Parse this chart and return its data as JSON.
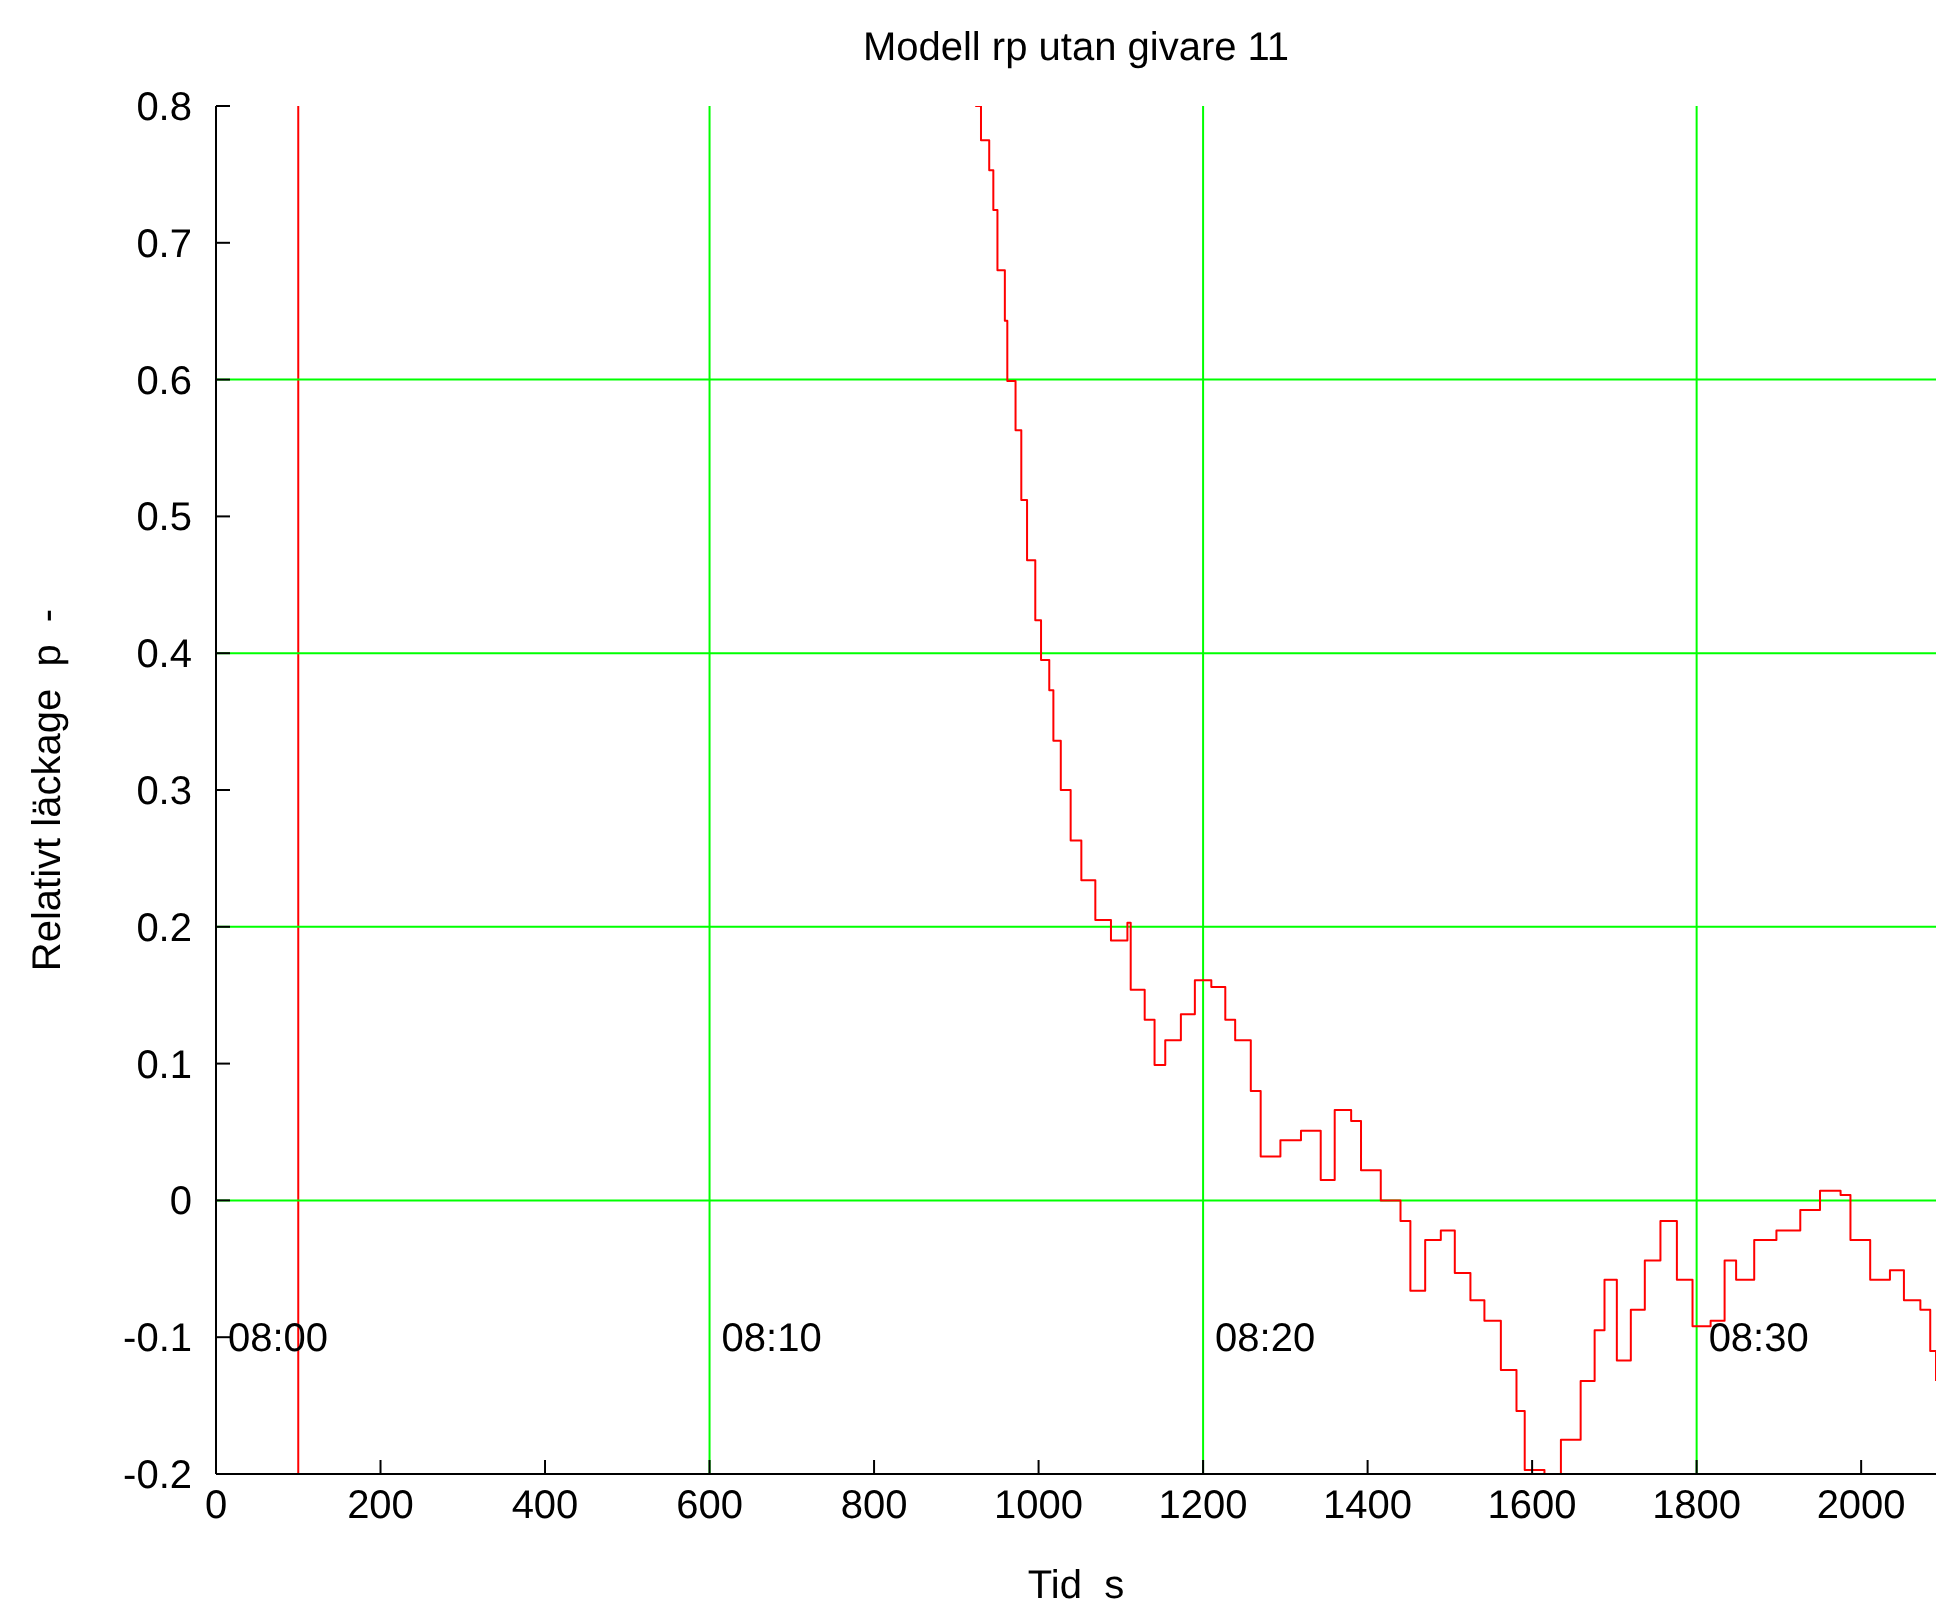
{
  "chart_data": {
    "type": "step",
    "title": "Modell rp utan givare 11",
    "xlabel": "Tid  s",
    "ylabel": "Relativt läckage  p  -",
    "x": [
      923,
      930,
      940,
      945,
      950,
      959,
      962,
      972,
      979,
      986,
      996,
      1003,
      1013,
      1018,
      1027,
      1039,
      1052,
      1069,
      1088,
      1108,
      1112,
      1129,
      1141,
      1154,
      1173,
      1190,
      1210,
      1227,
      1239,
      1258,
      1270,
      1294,
      1319,
      1343,
      1360,
      1380,
      1392,
      1416,
      1440,
      1452,
      1470,
      1489,
      1506,
      1525,
      1542,
      1562,
      1581,
      1591,
      1615,
      1635,
      1659,
      1676,
      1688,
      1703,
      1720,
      1737,
      1756,
      1776,
      1795,
      1817,
      1834,
      1848,
      1870,
      1897,
      1926,
      1950,
      1975,
      1987,
      2011,
      2035,
      2052,
      2072,
      2084,
      2091
    ],
    "series": [
      {
        "color": "#ff0000",
        "values": [
          0.8,
          0.775,
          0.753,
          0.724,
          0.68,
          0.643,
          0.599,
          0.563,
          0.512,
          0.468,
          0.424,
          0.395,
          0.373,
          0.336,
          0.3,
          0.263,
          0.234,
          0.205,
          0.19,
          0.203,
          0.154,
          0.132,
          0.099,
          0.117,
          0.136,
          0.161,
          0.156,
          0.132,
          0.117,
          0.08,
          0.032,
          0.044,
          0.051,
          0.015,
          0.066,
          0.058,
          0.022,
          0,
          -0.015,
          -0.066,
          -0.029,
          -0.022,
          -0.053,
          -0.073,
          -0.088,
          -0.124,
          -0.154,
          -0.197,
          -0.2,
          -0.175,
          -0.132,
          -0.095,
          -0.058,
          -0.117,
          -0.08,
          -0.044,
          -0.015,
          -0.058,
          -0.092,
          -0.088,
          -0.044,
          -0.058,
          -0.029,
          -0.022,
          -0.007,
          0.007,
          0.004,
          -0.029,
          -0.058,
          -0.051,
          -0.073,
          -0.08,
          -0.11,
          -0.132
        ]
      }
    ],
    "xlim": [
      0,
      2091
    ],
    "ylim": [
      -0.2,
      0.8
    ],
    "xticks": [
      0,
      200,
      400,
      600,
      800,
      1000,
      1200,
      1400,
      1600,
      1800,
      2000
    ],
    "yticks": [
      -0.2,
      -0.1,
      0,
      0.1,
      0.2,
      0.3,
      0.4,
      0.5,
      0.6,
      0.7,
      0.8
    ],
    "ref_lines": [
      {
        "axis": "x",
        "value": 100,
        "color": "#ff0000"
      },
      {
        "axis": "x",
        "value": 600,
        "color": "#00ff00"
      },
      {
        "axis": "x",
        "value": 1200,
        "color": "#00ff00"
      },
      {
        "axis": "x",
        "value": 1800,
        "color": "#00ff00"
      },
      {
        "axis": "y",
        "value": 0,
        "color": "#00ff00"
      },
      {
        "axis": "y",
        "value": 0.2,
        "color": "#00ff00"
      },
      {
        "axis": "y",
        "value": 0.4,
        "color": "#00ff00"
      },
      {
        "axis": "y",
        "value": 0.6,
        "color": "#00ff00"
      }
    ],
    "annotations": [
      "08:00",
      {
        "text": "08:10",
        "x": 600,
        "y": -0.1
      },
      {
        "text": "08:20",
        "x": 1200,
        "y": -0.1
      },
      {
        "text": "08:30",
        "x": 1800,
        "y": -0.1
      }
    ],
    "marker": "none",
    "line_style": "solid"
  }
}
